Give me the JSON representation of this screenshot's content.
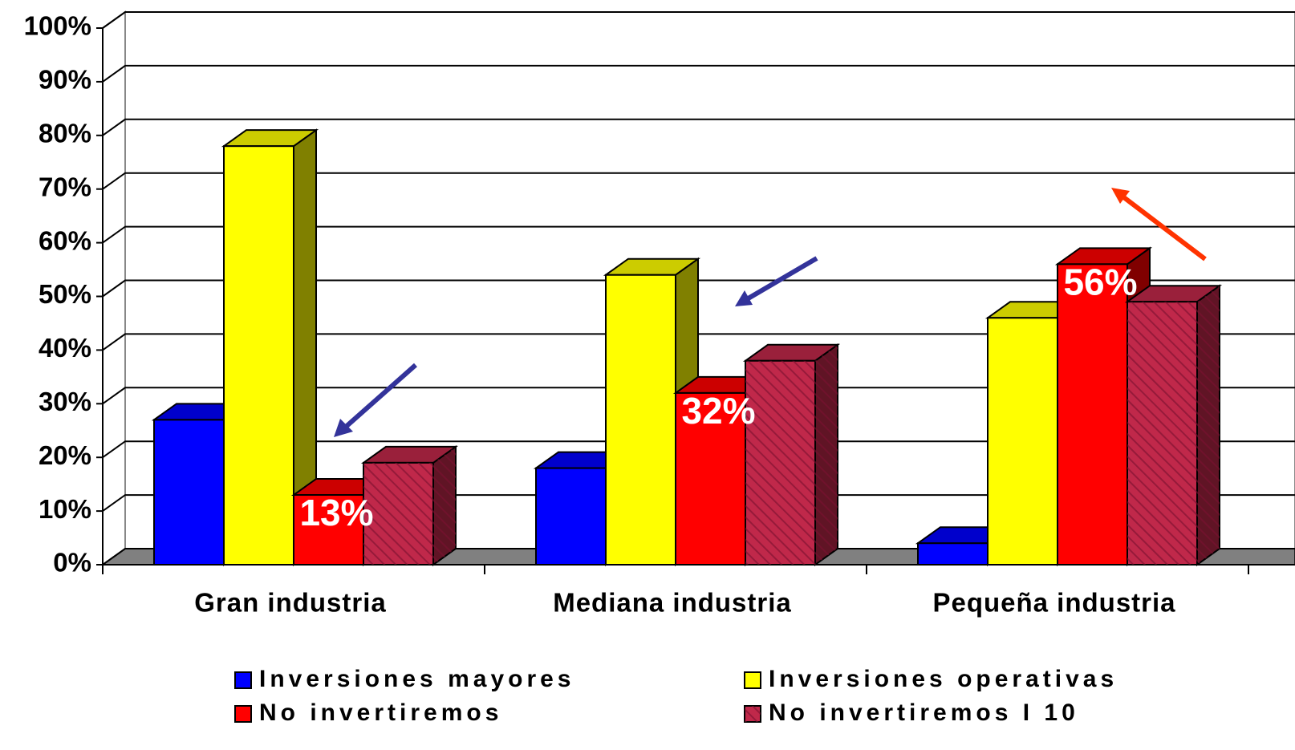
{
  "chart_data": {
    "type": "bar3d",
    "categories": [
      "Gran industria",
      "Mediana industria",
      "Pequeña industria"
    ],
    "series": [
      {
        "name": "Inversiones mayores",
        "color": "#0000ff",
        "values": [
          27,
          18,
          4
        ]
      },
      {
        "name": "Inversiones operativas",
        "color": "#ffff00",
        "values": [
          78,
          54,
          46
        ]
      },
      {
        "name": "No invertiremos",
        "color": "#ff0000",
        "values": [
          13,
          32,
          56
        ],
        "value_labels": [
          "13%",
          "32%",
          "56%"
        ]
      },
      {
        "name": "No invertiremos I 10",
        "color": "#c0284a",
        "hatch": true,
        "values": [
          19,
          38,
          49
        ]
      }
    ],
    "ylim": [
      0,
      100
    ],
    "yticks": [
      {
        "value": 0,
        "label": "0%"
      },
      {
        "value": 10,
        "label": "10%"
      },
      {
        "value": 20,
        "label": "20%"
      },
      {
        "value": 30,
        "label": "30%"
      },
      {
        "value": 40,
        "label": "40%"
      },
      {
        "value": 50,
        "label": "50%"
      },
      {
        "value": 60,
        "label": "60%"
      },
      {
        "value": 70,
        "label": "70%"
      },
      {
        "value": 80,
        "label": "80%"
      },
      {
        "value": 90,
        "label": "90%"
      },
      {
        "value": 100,
        "label": "100%"
      }
    ],
    "grid": true,
    "legend": "bottom"
  }
}
